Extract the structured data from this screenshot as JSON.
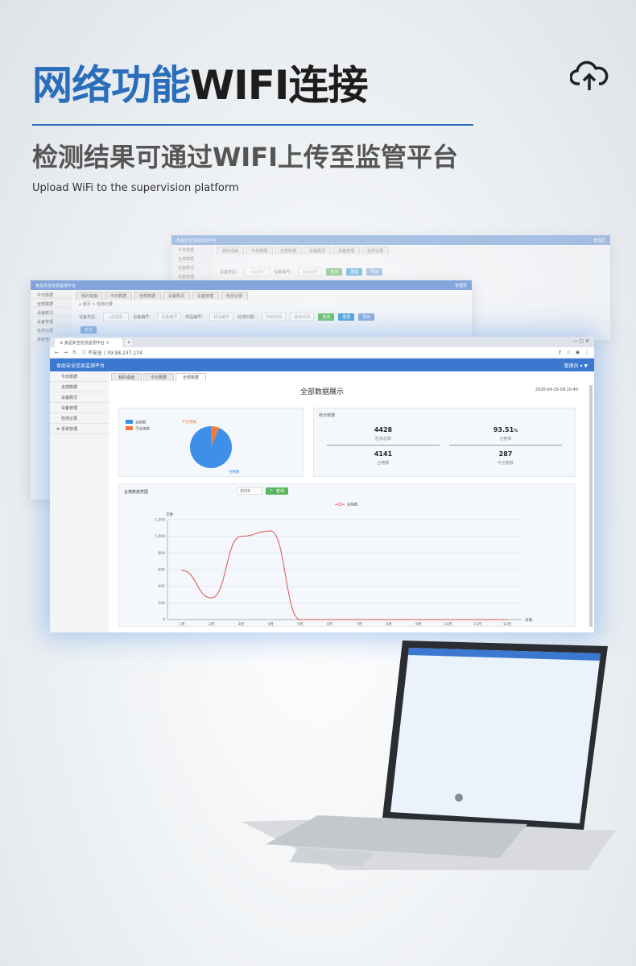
{
  "header": {
    "title_blue": "网络功能",
    "title_dark": "WIFI连接",
    "subtitle": "检测结果可通过WIFI上传至监管平台",
    "subtitle_en": "Upload WiFi to the supervision platform",
    "icon": "cloud-upload-icon"
  },
  "app": {
    "name": "食品安全信息监测平台",
    "user": "管理员",
    "sidebar": [
      "今日数据",
      "全部数据",
      "设备概况",
      "设备管理",
      "检测记录",
      "系统管理"
    ],
    "tabs": [
      "我的桌面",
      "今日数据",
      "全部数据",
      "设备概况",
      "设备管理",
      "检测记录"
    ],
    "breadcrumb": [
      "首页",
      "检测记录"
    ],
    "filters": {
      "device_type": "设备类型：",
      "select": "--请选择--",
      "device_no": "设备编号：",
      "device_no_ph": "设备编号",
      "sample_no": "样品编号：",
      "sample_no_ph": "样品编号",
      "date": "检测日期：",
      "start": "开始时间",
      "end": "结束时间"
    },
    "buttons": {
      "query": "查询",
      "reset": "重置",
      "export": "导出",
      "add": "新增"
    }
  },
  "browser": {
    "tab_title": "食品安全信息监测平台",
    "security": "不安全",
    "url": "39.98.237.174"
  },
  "dashboard": {
    "tabs": [
      "我的桌面",
      "今日数据",
      "全部数据"
    ],
    "title": "全部数据展示",
    "datetime": "2020-04-29 09:10:40",
    "stats_title": "统计数据",
    "stats": [
      {
        "value": "4428",
        "label": "检测总数"
      },
      {
        "value": "93.51",
        "unit": "%",
        "label": "合格率"
      },
      {
        "value": "4141",
        "label": "合格数"
      },
      {
        "value": "287",
        "label": "不合格数"
      }
    ],
    "trend_title": "合格数趋势图",
    "year": "2020",
    "query": "查询"
  },
  "chart_data": [
    {
      "type": "pie",
      "legend": [
        "合格数",
        "不合格数"
      ],
      "values": [
        4141,
        287
      ],
      "colors": [
        "#3d8fe8",
        "#ee7a3c"
      ]
    },
    {
      "type": "line",
      "legend": [
        "合格数"
      ],
      "xlabel": "日期",
      "ylabel": "次数",
      "categories": [
        "1月",
        "2月",
        "3月",
        "4月",
        "5月",
        "6月",
        "7月",
        "8月",
        "9月",
        "10月",
        "11月",
        "12月"
      ],
      "values": [
        590,
        260,
        1000,
        1065,
        0,
        0,
        0,
        0,
        0,
        0,
        0,
        0
      ],
      "ylim": [
        0,
        1200
      ],
      "yticks": [
        "0",
        "200",
        "400",
        "600",
        "800",
        "1,000",
        "1,200"
      ],
      "color": "#d9534f",
      "grid": true
    }
  ]
}
